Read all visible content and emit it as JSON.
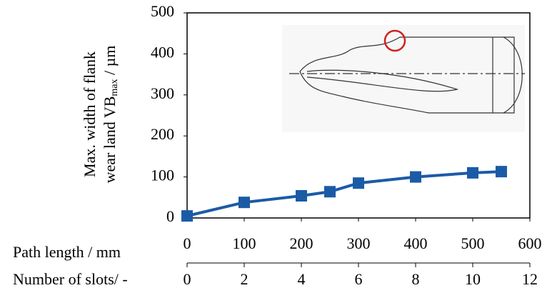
{
  "chart_data": {
    "type": "line",
    "ylabel": {
      "line1": "Max. width of flank",
      "line2": "wear land VB",
      "line2_sub": "max",
      "line2_unit": " / µm"
    },
    "xlabel": "Path length / mm",
    "x2label": "Number of slots/ -",
    "x": [
      0,
      100,
      200,
      250,
      300,
      400,
      500,
      550
    ],
    "series": [
      {
        "color": "#1b5ba6",
        "values": [
          5,
          38,
          54,
          64,
          85,
          100,
          110,
          113
        ]
      }
    ],
    "xlim": [
      0,
      600
    ],
    "xticks": [
      0,
      100,
      200,
      300,
      400,
      500,
      600
    ],
    "x2lim": [
      0,
      12
    ],
    "x2ticks": [
      0,
      2,
      4,
      6,
      8,
      10,
      12
    ],
    "ylim": [
      0,
      500
    ],
    "yticks": [
      0,
      100,
      200,
      300,
      400,
      500
    ],
    "grid": false
  }
}
